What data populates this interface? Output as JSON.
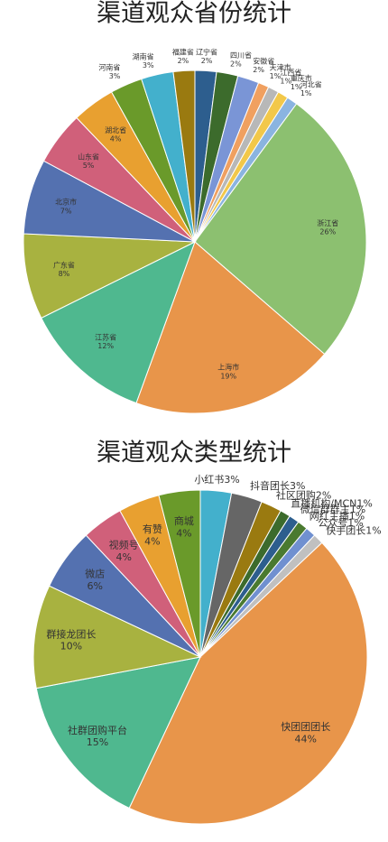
{
  "chart_data": [
    {
      "type": "pie",
      "title": "渠道观众省份统计",
      "categories": [
        "辽宁省",
        "四川省",
        "安徽省",
        "天津市",
        "江西省",
        "重庆市",
        "河北省",
        "浙江省",
        "上海市",
        "江苏省",
        "广东省",
        "北京市",
        "山东省",
        "湖北省",
        "河南省",
        "湖南省",
        "福建省"
      ],
      "values": [
        2,
        2,
        2,
        1,
        1,
        1,
        1,
        26,
        19,
        12,
        8,
        7,
        5,
        4,
        3,
        3,
        2
      ],
      "value_labels": [
        "2%",
        "2%",
        "2%",
        "1%",
        "1%",
        "1%",
        "1%",
        "26%",
        "19%",
        "12%",
        "8%",
        "7%",
        "5%",
        "4%",
        "3%",
        "3%",
        "2%"
      ],
      "colors": [
        "#2d5e8e",
        "#3c6b2c",
        "#7a95d6",
        "#f0a060",
        "#b8b8b8",
        "#f2c84a",
        "#8ab4e0",
        "#8cc070",
        "#e8954a",
        "#4fb88f",
        "#a8b240",
        "#5471b0",
        "#d0607a",
        "#e8a030",
        "#6a9a2a",
        "#43b0cc",
        "#9a7a10"
      ]
    },
    {
      "type": "pie",
      "title": "渠道观众类型统计",
      "categories": [
        "小红书",
        "抖音团长",
        "社区团购",
        "直播机构/MCN",
        "微信群群主",
        "网红主播",
        "公众号",
        "快手团长",
        "快团团团长",
        "社群团购平台",
        "群接龙团长",
        "微店",
        "视频号",
        "有赞",
        "商城"
      ],
      "values": [
        3,
        3,
        2,
        1,
        1,
        1,
        1,
        1,
        44,
        15,
        10,
        6,
        4,
        4,
        4
      ],
      "value_labels": [
        "3%",
        "3%",
        "2%",
        "1%",
        "1%",
        "1%",
        "1%",
        "1%",
        "44%",
        "15%",
        "10%",
        "6%",
        "4%",
        "4%",
        "4%"
      ],
      "colors": [
        "#43b0cc",
        "#666666",
        "#9a7a10",
        "#3c6b2c",
        "#2d5e8e",
        "#4a7a30",
        "#7090d0",
        "#c0c0c0",
        "#e8954a",
        "#4fb88f",
        "#a8b240",
        "#5471b0",
        "#d0607a",
        "#e8a030",
        "#6a9a2a"
      ]
    }
  ]
}
